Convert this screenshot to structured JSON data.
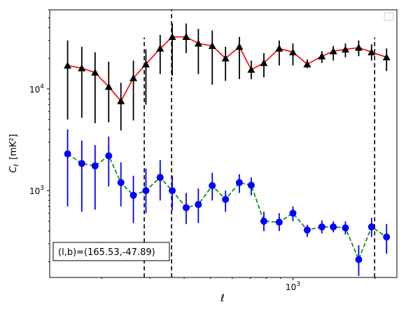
{
  "chart_data": {
    "type": "scatter",
    "xlabel": "ℓ",
    "ylabel_main": "C",
    "ylabel_sub": "ℓ",
    "ylabel_units": "[mK²]",
    "xscale": "log",
    "yscale": "log",
    "xlim": [
      129,
      2400
    ],
    "ylim": [
      140,
      60000
    ],
    "x_ticks": [
      {
        "value": 1000,
        "base": "10",
        "exp": "3"
      }
    ],
    "y_ticks": [
      {
        "value": 1000,
        "base": "10",
        "exp": "3"
      },
      {
        "value": 10000,
        "base": "10",
        "exp": "4"
      }
    ],
    "annotation": "(l,b)=(165.53,-47.89)",
    "legend_position": "top-right",
    "vlines": [
      {
        "x": 286,
        "ymin": 140,
        "ymax": 32000
      },
      {
        "x": 360,
        "ymin": 140,
        "ymax": 60000
      },
      {
        "x": 1990,
        "ymin": 140,
        "ymax": 32000
      }
    ],
    "series": [
      {
        "marker": "triangle",
        "marker_color": "#000000",
        "line_color": "#ff0000",
        "line_style": "solid",
        "errorbar_color": "#000000",
        "x": [
          150,
          169,
          189,
          212,
          235,
          261,
          290,
          327,
          362,
          407,
          451,
          507,
          567,
          637,
          704,
          783,
          891,
          1000,
          1128,
          1276,
          1405,
          1556,
          1740,
          1939,
          2200
        ],
        "y": [
          17000,
          16000,
          14500,
          10500,
          7600,
          12800,
          17500,
          25000,
          32500,
          32500,
          28000,
          26500,
          20000,
          26000,
          15500,
          18000,
          25000,
          23000,
          17500,
          21000,
          23500,
          24500,
          25500,
          23000,
          20500
        ],
        "err_low": [
          5000,
          5200,
          4600,
          4700,
          3900,
          4900,
          7000,
          14000,
          13500,
          22500,
          14000,
          11000,
          12000,
          12500,
          12500,
          13000,
          17000,
          17000,
          16000,
          18000,
          19000,
          20500,
          21000,
          19000,
          15000
        ],
        "err_high": [
          30000,
          26000,
          23000,
          18500,
          11500,
          19000,
          24500,
          34000,
          44000,
          44000,
          39000,
          37500,
          26000,
          32500,
          19000,
          22500,
          30000,
          28000,
          19500,
          23500,
          26500,
          28000,
          30000,
          27500,
          25000
        ]
      },
      {
        "marker": "circle",
        "marker_color": "#0000ff",
        "line_color": "#008000",
        "line_style": "dashed",
        "errorbar_color": "#0000ff",
        "x": [
          150,
          169,
          189,
          212,
          235,
          261,
          290,
          327,
          362,
          407,
          451,
          507,
          567,
          637,
          704,
          783,
          891,
          1000,
          1128,
          1276,
          1405,
          1556,
          1740,
          1939,
          2200
        ],
        "y": [
          2300,
          1850,
          1750,
          2200,
          1200,
          900,
          1000,
          1350,
          1000,
          680,
          730,
          1120,
          820,
          1200,
          1130,
          500,
          490,
          600,
          410,
          440,
          440,
          430,
          210,
          440,
          350
        ],
        "err_low": [
          700,
          620,
          650,
          1100,
          700,
          480,
          600,
          800,
          640,
          470,
          480,
          800,
          620,
          950,
          900,
          400,
          400,
          500,
          350,
          380,
          390,
          370,
          145,
          350,
          240
        ],
        "err_high": [
          4000,
          3100,
          2800,
          3400,
          1900,
          1400,
          1650,
          2000,
          1400,
          950,
          1050,
          1500,
          1000,
          1450,
          1350,
          620,
          600,
          700,
          460,
          510,
          500,
          500,
          290,
          540,
          470
        ]
      }
    ]
  }
}
